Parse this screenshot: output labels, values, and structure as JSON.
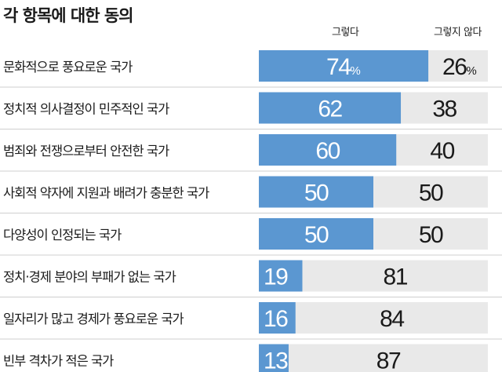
{
  "chart_data": {
    "type": "bar",
    "orientation": "horizontal",
    "stacked": true,
    "title": "각 항목에 대한 동의",
    "legend": [
      "그렇다",
      "그렇지 않다"
    ],
    "categories": [
      "문화적으로 풍요로운 국가",
      "정치적 의사결정이 민주적인 국가",
      "범죄와 전쟁으로부터 안전한 국가",
      "사회적 약자에 지원과 배려가 충분한 국가",
      "다양성이 인정되는 국가",
      "정치·경제 분야의 부패가 없는 국가",
      "일자리가 많고 경제가 풍요로운 국가",
      "빈부 격차가 적은 국가"
    ],
    "series": [
      {
        "name": "그렇다",
        "values": [
          74,
          62,
          60,
          50,
          50,
          19,
          16,
          13
        ]
      },
      {
        "name": "그렇지 않다",
        "values": [
          26,
          38,
          40,
          50,
          50,
          81,
          84,
          87
        ]
      }
    ],
    "unit_label": "%",
    "xlim": [
      0,
      100
    ],
    "grid": false,
    "colors": {
      "agree": "#5b97d1",
      "disagree": "#e9e9e9",
      "separator": "#cfcfcf"
    }
  }
}
